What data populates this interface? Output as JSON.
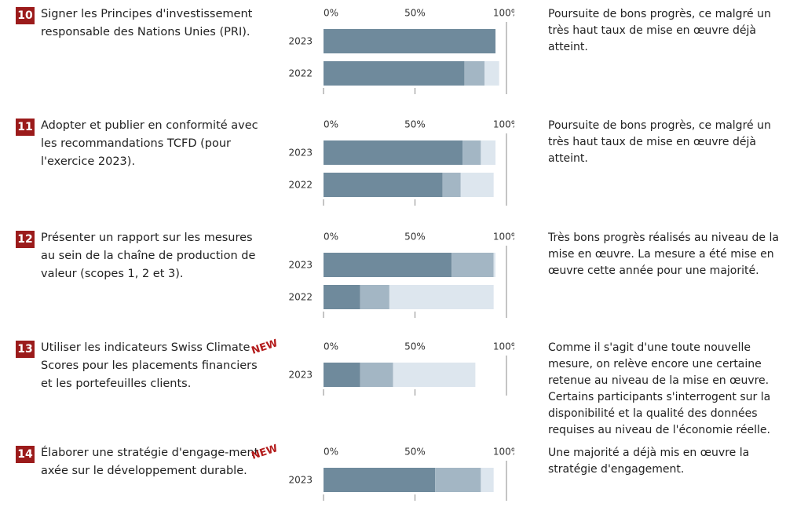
{
  "axis": {
    "xlim": [
      0,
      100
    ],
    "ticks": [
      {
        "value": 0,
        "label": "0%"
      },
      {
        "value": 50,
        "label": "50%"
      },
      {
        "value": 100,
        "label": "100%"
      }
    ]
  },
  "colors": [
    "#6f8a9c",
    "#a3b6c4",
    "#dde6ee"
  ],
  "items": [
    {
      "number": "10",
      "title": "Signer les Principes d'investissement responsable des Nations Unies (PRI).",
      "comment": "Poursuite de bons progrès, ce malgré un très haut taux de mise en œuvre déjà atteint.",
      "bars": [
        {
          "year": "2023",
          "values": [
            94,
            0,
            0
          ]
        },
        {
          "year": "2022",
          "values": [
            77,
            11,
            8
          ]
        }
      ]
    },
    {
      "number": "11",
      "title": "Adopter et publier en conformité avec les recommandations TCFD (pour l'exercice 2023).",
      "comment": "Poursuite de bons progrès, ce malgré un très haut taux de mise en œuvre déjà atteint.",
      "bars": [
        {
          "year": "2023",
          "values": [
            76,
            10,
            8
          ]
        },
        {
          "year": "2022",
          "values": [
            65,
            10,
            18
          ]
        }
      ]
    },
    {
      "number": "12",
      "title": "Présenter un rapport sur les mesures au sein de la chaîne de production de valeur (scopes 1, 2 et 3).",
      "comment": "Très bons progrès réalisés au niveau de la mise en œuvre. La mesure a été mise en œuvre cette année pour une majorité.",
      "bars": [
        {
          "year": "2023",
          "values": [
            70,
            23,
            1
          ]
        },
        {
          "year": "2022",
          "values": [
            20,
            16,
            57
          ]
        }
      ]
    },
    {
      "number": "13",
      "badge": "NEW",
      "title": "Utiliser les indicateurs Swiss Climate Scores pour les placements financiers et les portefeuilles clients.",
      "comment": "Comme il s'agit d'une toute nouvelle mesure, on relève encore une certaine retenue au niveau de la mise en œuvre. Certains participants s'interrogent sur la disponibilité et la qualité des données requises au niveau de l'économie réelle.",
      "bars": [
        {
          "year": "2023",
          "values": [
            20,
            18,
            45
          ]
        }
      ]
    },
    {
      "number": "14",
      "badge": "NEW",
      "title": "Élaborer une stratégie d'engage-ment axée sur le développement durable.",
      "comment": "Une majorité a déjà mis en œuvre la stratégie d'engagement.",
      "bars": [
        {
          "year": "2023",
          "values": [
            61,
            25,
            7
          ]
        }
      ]
    }
  ]
}
